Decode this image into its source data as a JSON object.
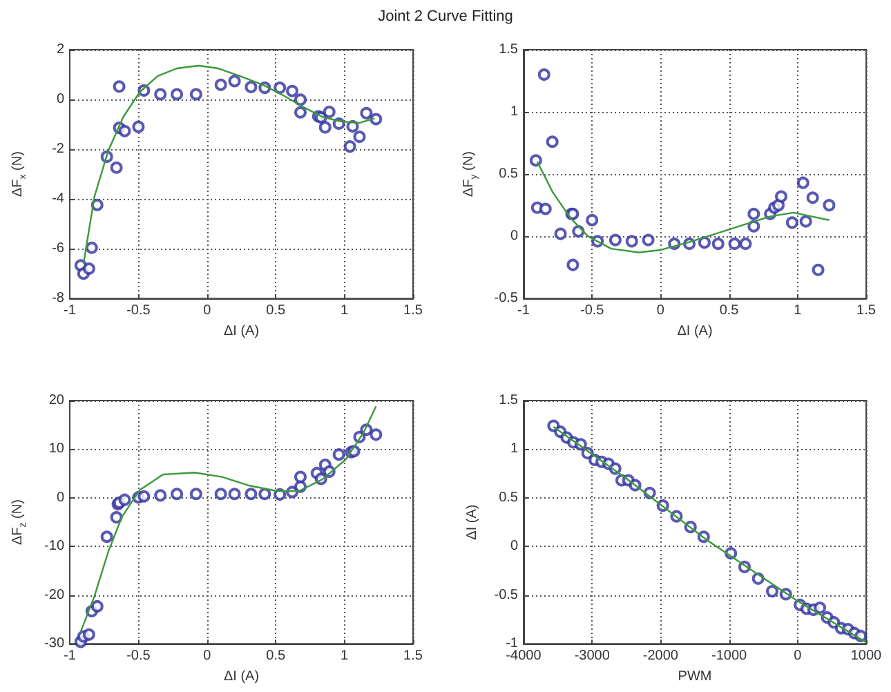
{
  "chart_data": [
    {
      "type": "scatter",
      "title": "Joint 2 Curve Fitting",
      "xlabel": "ΔI (A)",
      "ylabel": "ΔF$_{x}$ (N)",
      "xlim": [
        -1,
        1.5
      ],
      "xticks": [
        -1,
        -0.5,
        0,
        0.5,
        1,
        1.5
      ],
      "ylim": [
        -8,
        2
      ],
      "yticks": [
        -8,
        -6,
        -4,
        -2,
        0,
        2
      ],
      "grid": true,
      "series": [
        {
          "marker": "circle",
          "color": "#2f2fa0",
          "x": [
            -0.92,
            -0.9,
            -0.86,
            -0.84,
            -0.8,
            -0.73,
            -0.66,
            -0.64,
            -0.64,
            -0.6,
            -0.5,
            -0.46,
            -0.34,
            -0.22,
            -0.08,
            0.1,
            0.2,
            0.32,
            0.42,
            0.53,
            0.62,
            0.68,
            0.68,
            0.81,
            0.83,
            0.86,
            0.89,
            0.96,
            1.06,
            1.04,
            1.11,
            1.16,
            1.23
          ],
          "values": [
            -6.67,
            -7.0,
            -6.8,
            -5.96,
            -4.24,
            -2.3,
            -2.74,
            0.52,
            -1.14,
            -1.27,
            -1.1,
            0.36,
            0.21,
            0.21,
            0.21,
            0.59,
            0.74,
            0.5,
            0.47,
            0.47,
            0.34,
            -0.01,
            -0.52,
            -0.68,
            -0.72,
            -1.12,
            -0.5,
            -0.97,
            -1.08,
            -1.89,
            -1.5,
            -0.55,
            -0.79
          ]
        },
        {
          "type": "line",
          "color": "#3a9a3a",
          "x": [
            -0.9,
            -0.82,
            -0.72,
            -0.61,
            -0.49,
            -0.36,
            -0.22,
            -0.06,
            0.08,
            0.24,
            0.41,
            0.57,
            0.71,
            0.84,
            0.97,
            1.11,
            1.22
          ],
          "values": [
            -6.6,
            -3.9,
            -2.07,
            -0.7,
            0.3,
            0.94,
            1.25,
            1.36,
            1.25,
            0.94,
            0.58,
            0.12,
            -0.33,
            -0.7,
            -0.88,
            -0.94,
            -0.76
          ],
          "marker": "none"
        }
      ]
    },
    {
      "type": "scatter",
      "xlabel": "ΔI (A)",
      "ylabel": "ΔF$_{y}$ (N)",
      "xlim": [
        -1,
        1.5
      ],
      "xticks": [
        -1,
        -0.5,
        0,
        0.5,
        1,
        1.5
      ],
      "ylim": [
        -0.5,
        1.5
      ],
      "yticks": [
        -0.5,
        0,
        0.5,
        1,
        1.5
      ],
      "grid": true,
      "series": [
        {
          "marker": "circle",
          "color": "#2f2fa0",
          "x": [
            -0.91,
            -0.85,
            -0.9,
            -0.84,
            -0.79,
            -0.73,
            -0.65,
            -0.64,
            -0.64,
            -0.6,
            -0.5,
            -0.46,
            -0.33,
            -0.21,
            -0.09,
            0.1,
            0.21,
            0.32,
            0.42,
            0.54,
            0.62,
            0.68,
            0.68,
            0.8,
            0.83,
            0.86,
            0.88,
            0.96,
            1.04,
            1.06,
            1.11,
            1.15,
            1.23
          ],
          "values": [
            0.61,
            1.3,
            0.23,
            0.22,
            0.76,
            0.02,
            0.18,
            0.18,
            -0.23,
            0.04,
            0.13,
            -0.04,
            -0.03,
            -0.04,
            -0.03,
            -0.06,
            -0.06,
            -0.05,
            -0.06,
            -0.06,
            -0.06,
            0.18,
            0.08,
            0.18,
            0.23,
            0.25,
            0.32,
            0.11,
            0.43,
            0.12,
            0.31,
            -0.27,
            0.25
          ]
        },
        {
          "type": "line",
          "color": "#3a9a3a",
          "x": [
            -0.9,
            -0.79,
            -0.66,
            -0.53,
            -0.36,
            -0.16,
            0,
            0.2,
            0.4,
            0.6,
            0.8,
            0.97,
            1.23
          ],
          "values": [
            0.6,
            0.36,
            0.15,
            0,
            -0.1,
            -0.13,
            -0.11,
            -0.05,
            0.02,
            0.09,
            0.16,
            0.19,
            0.13
          ],
          "marker": "none"
        }
      ]
    },
    {
      "type": "scatter",
      "xlabel": "ΔI (A)",
      "ylabel": "ΔF$_{z}$ (N)",
      "xlim": [
        -1,
        1.5
      ],
      "xticks": [
        -1,
        -0.5,
        0,
        0.5,
        1,
        1.5
      ],
      "ylim": [
        -30,
        20
      ],
      "yticks": [
        -30,
        -20,
        -10,
        0,
        10,
        20
      ],
      "grid": true,
      "series": [
        {
          "marker": "circle",
          "color": "#2f2fa0",
          "x": [
            -0.92,
            -0.9,
            -0.86,
            -0.84,
            -0.8,
            -0.73,
            -0.66,
            -0.65,
            -0.64,
            -0.6,
            -0.5,
            -0.46,
            -0.34,
            -0.22,
            -0.08,
            0.1,
            0.2,
            0.32,
            0.42,
            0.53,
            0.62,
            0.68,
            0.68,
            0.8,
            0.83,
            0.86,
            0.89,
            0.96,
            1.05,
            1.07,
            1.11,
            1.16,
            1.23
          ],
          "values": [
            -29.6,
            -28.5,
            -28.1,
            -23.3,
            -22.3,
            -8,
            -4,
            -1.3,
            -1,
            -0.4,
            0.1,
            0.3,
            0.5,
            0.8,
            0.8,
            0.8,
            0.8,
            0.8,
            0.8,
            0.7,
            1.2,
            2.3,
            4.3,
            5.1,
            3.9,
            6.8,
            5.4,
            8.9,
            9.4,
            9.6,
            12.5,
            14,
            13
          ]
        },
        {
          "type": "line",
          "color": "#3a9a3a",
          "x": [
            -0.92,
            -0.82,
            -0.72,
            -0.62,
            -0.49,
            -0.32,
            -0.09,
            0.11,
            0.31,
            0.51,
            0.67,
            0.84,
            1.01,
            1.14,
            1.23
          ],
          "values": [
            -27.5,
            -20.2,
            -11.1,
            -3.9,
            1.6,
            4.8,
            5.2,
            4.3,
            2.5,
            1.4,
            1.4,
            3.8,
            7.9,
            13.4,
            18.8
          ],
          "marker": "none"
        }
      ]
    },
    {
      "type": "scatter",
      "xlabel": "PWM",
      "ylabel": "ΔI (A)",
      "xlim": [
        -4000,
        1000
      ],
      "xticks": [
        -4000,
        -3000,
        -2000,
        -1000,
        0,
        1000
      ],
      "ylim": [
        -1,
        1.5
      ],
      "yticks": [
        -1,
        -0.5,
        0,
        0.5,
        1,
        1.5
      ],
      "grid": true,
      "series": [
        {
          "marker": "circle",
          "color": "#2f2fa0",
          "x": [
            -3563,
            -3464,
            -3371,
            -3272,
            -3166,
            -3066,
            -2960,
            -2861,
            -2761,
            -2662,
            -2569,
            -2470,
            -2371,
            -2159,
            -1967,
            -1768,
            -1563,
            -1371,
            -974,
            -775,
            -576,
            -371,
            -172,
            33,
            132,
            232,
            325,
            431,
            530,
            636,
            735,
            828,
            921
          ],
          "values": [
            1.24,
            1.18,
            1.12,
            1.07,
            1.05,
            0.96,
            0.89,
            0.87,
            0.85,
            0.8,
            0.68,
            0.68,
            0.63,
            0.55,
            0.42,
            0.31,
            0.2,
            0.1,
            -0.07,
            -0.21,
            -0.33,
            -0.46,
            -0.49,
            -0.6,
            -0.64,
            -0.65,
            -0.63,
            -0.73,
            -0.78,
            -0.84,
            -0.85,
            -0.89,
            -0.92
          ]
        },
        {
          "type": "line",
          "color": "#3a9a3a",
          "x": [
            -3563,
            -2500,
            -1331,
            0,
            987
          ],
          "values": [
            1.23,
            0.7,
            0.07,
            -0.56,
            -0.98
          ],
          "marker": "none"
        }
      ]
    }
  ]
}
